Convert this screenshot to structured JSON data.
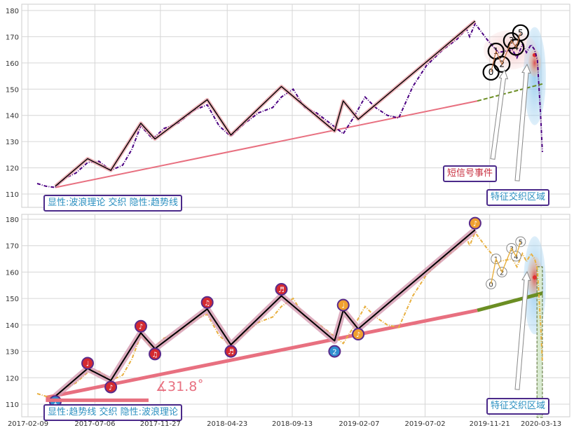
{
  "chart_data": [
    {
      "type": "line",
      "panel": "top",
      "ylim": [
        105,
        182
      ],
      "y_ticks": [
        "110",
        "120",
        "130",
        "140",
        "150",
        "160",
        "170",
        "180"
      ],
      "grid": true,
      "series": [
        {
          "role": "price",
          "color": "#4b0082",
          "style": "dash-dot",
          "x": [
            "2017-03-01",
            "2017-03-20",
            "2017-04-10",
            "2017-05-01",
            "2017-05-25",
            "2017-06-20",
            "2017-07-15",
            "2017-08-10",
            "2017-09-05",
            "2017-09-25",
            "2017-10-15",
            "2017-11-10",
            "2017-12-05",
            "2018-01-05",
            "2018-02-10",
            "2018-03-10",
            "2018-04-05",
            "2018-05-01",
            "2018-06-01",
            "2018-07-01",
            "2018-08-01",
            "2018-08-20",
            "2018-09-15",
            "2018-10-10",
            "2018-11-05",
            "2018-12-05",
            "2019-01-03",
            "2019-01-25",
            "2019-02-20",
            "2019-03-15",
            "2019-04-10",
            "2019-05-05",
            "2019-06-05",
            "2019-07-05",
            "2019-08-10",
            "2019-09-10",
            "2019-10-01",
            "2019-10-08",
            "2019-10-20",
            "2019-11-15",
            "2019-12-10",
            "2020-01-10",
            "2020-01-20",
            "2020-02-01",
            "2020-02-10",
            "2020-02-20",
            "2020-02-28",
            "2020-03-05",
            "2020-03-12",
            "2020-03-16"
          ],
          "y": [
            114,
            113,
            112.5,
            116,
            118,
            122,
            122.5,
            119,
            121,
            127,
            136,
            131,
            135,
            137,
            142,
            144,
            136,
            132,
            137,
            141,
            143,
            147,
            150,
            143,
            141,
            137,
            133,
            139,
            147,
            143,
            140,
            139,
            151,
            159,
            165,
            169,
            173,
            170,
            175,
            169,
            164,
            165,
            162,
            167,
            164,
            167,
            165,
            161,
            140,
            126
          ]
        },
        {
          "role": "wave",
          "color": "#000000",
          "glow": "#e8a0a8",
          "x": [
            "2017-04-10",
            "2017-06-20",
            "2017-08-10",
            "2017-10-15",
            "2017-11-15",
            "2018-03-10",
            "2018-05-01",
            "2018-08-20",
            "2018-12-15",
            "2019-01-03",
            "2019-02-05",
            "2019-10-20"
          ],
          "y": [
            113,
            123.5,
            119,
            137,
            131,
            146,
            132.5,
            151,
            134,
            145.5,
            138.5,
            176
          ]
        },
        {
          "role": "trend",
          "color": "#e87080",
          "x": [
            "2017-04-10",
            "2019-10-25"
          ],
          "y": [
            112.5,
            145.5
          ]
        },
        {
          "role": "trend-extension",
          "color": "#6b8e23",
          "style": "dashed",
          "x": [
            "2019-10-25",
            "2020-03-16"
          ],
          "y": [
            145.5,
            152
          ]
        }
      ],
      "signal_points": [
        {
          "label": "0",
          "x": "2019-11-24",
          "y": 156.5
        },
        {
          "label": "1",
          "x": "2019-12-05",
          "y": 164.5
        },
        {
          "label": "2",
          "x": "2019-12-18",
          "y": 159.5
        },
        {
          "label": "3",
          "x": "2020-01-08",
          "y": 168.5
        },
        {
          "label": "4",
          "x": "2020-01-18",
          "y": 166
        },
        {
          "label": "5",
          "x": "2020-01-28",
          "y": 171.5
        }
      ],
      "annotations": {
        "short_signal": "短信号事件",
        "feature_zone": "特征交织区域",
        "legend": "显性:波浪理论 交织 隐性:趋势线"
      }
    },
    {
      "type": "line",
      "panel": "bottom",
      "ylim": [
        105,
        182
      ],
      "y_ticks": [
        "110",
        "120",
        "130",
        "140",
        "150",
        "160",
        "170",
        "180"
      ],
      "x_ticks": [
        "2017-02-09",
        "2017-07-06",
        "2017-11-27",
        "2018-04-23",
        "2018-09-13",
        "2019-02-07",
        "2019-07-02",
        "2019-11-21",
        "2020-03-13"
      ],
      "grid": true,
      "series": [
        {
          "role": "price",
          "color": "#e8b040",
          "style": "dash-dot",
          "x": [
            "2017-03-01",
            "2017-03-20",
            "2017-04-10",
            "2017-05-01",
            "2017-05-25",
            "2017-06-20",
            "2017-07-15",
            "2017-08-10",
            "2017-09-05",
            "2017-09-25",
            "2017-10-15",
            "2017-11-10",
            "2017-12-05",
            "2018-01-05",
            "2018-02-10",
            "2018-03-10",
            "2018-04-05",
            "2018-05-01",
            "2018-06-01",
            "2018-07-01",
            "2018-08-01",
            "2018-08-20",
            "2018-09-15",
            "2018-10-10",
            "2018-11-05",
            "2018-12-05",
            "2019-01-03",
            "2019-01-25",
            "2019-02-20",
            "2019-03-15",
            "2019-04-10",
            "2019-05-05",
            "2019-06-05",
            "2019-07-05",
            "2019-08-10",
            "2019-09-10",
            "2019-10-01",
            "2019-10-08",
            "2019-10-20",
            "2019-11-15",
            "2019-12-10",
            "2020-01-10",
            "2020-01-20",
            "2020-02-01",
            "2020-02-10",
            "2020-02-20",
            "2020-02-28",
            "2020-03-05",
            "2020-03-12",
            "2020-03-16"
          ],
          "y": [
            114,
            113,
            112.5,
            116,
            118,
            122,
            122.5,
            119,
            121,
            127,
            136,
            131,
            135,
            137,
            142,
            144,
            136,
            132,
            137,
            141,
            143,
            147,
            150,
            143,
            141,
            137,
            133,
            139,
            147,
            143,
            140,
            139,
            151,
            159,
            165,
            169,
            173,
            170,
            175,
            169,
            164,
            165,
            162,
            167,
            164,
            167,
            165,
            161,
            140,
            126
          ]
        },
        {
          "role": "wave",
          "color": "#000000",
          "glow": "#d49ab0",
          "x": [
            "2017-04-10",
            "2017-06-20",
            "2017-08-10",
            "2017-10-15",
            "2017-11-15",
            "2018-03-10",
            "2018-05-01",
            "2018-08-20",
            "2018-12-15",
            "2019-01-03",
            "2019-02-05",
            "2019-10-20"
          ],
          "y": [
            113,
            123.5,
            119,
            137,
            131,
            146,
            132.5,
            151,
            134,
            145.5,
            138.5,
            176
          ]
        },
        {
          "role": "trend",
          "color": "#e87080",
          "x": [
            "2017-03-20",
            "2019-10-25"
          ],
          "y": [
            112.5,
            145.5
          ]
        },
        {
          "role": "trend-extension",
          "color": "#6b8e23",
          "x": [
            "2019-10-25",
            "2020-03-16"
          ],
          "y": [
            145.5,
            152
          ]
        }
      ],
      "wave_markers": [
        {
          "x": "2017-04-10",
          "y": 111,
          "color": "#2f8fd0",
          "glyph": "1"
        },
        {
          "x": "2017-06-20",
          "y": 125.5,
          "color": "#d42a30",
          "glyph": "♩"
        },
        {
          "x": "2017-08-10",
          "y": 116.5,
          "color": "#d42a30",
          "glyph": "♪"
        },
        {
          "x": "2017-10-15",
          "y": 139.5,
          "color": "#d42a30",
          "glyph": "♪"
        },
        {
          "x": "2017-11-15",
          "y": 129,
          "color": "#d42a30",
          "glyph": "♫"
        },
        {
          "x": "2018-03-10",
          "y": 148.5,
          "color": "#d42a30",
          "glyph": "♫"
        },
        {
          "x": "2018-05-01",
          "y": 130,
          "color": "#d42a30",
          "glyph": "♬"
        },
        {
          "x": "2018-08-20",
          "y": 153.5,
          "color": "#d42a30",
          "glyph": "♬"
        },
        {
          "x": "2018-12-15",
          "y": 130,
          "color": "#2f8fd0",
          "glyph": "2"
        },
        {
          "x": "2019-01-03",
          "y": 147.5,
          "color": "#f0a030",
          "glyph": "♩"
        },
        {
          "x": "2019-02-05",
          "y": 136.5,
          "color": "#f0a030",
          "glyph": "♪"
        },
        {
          "x": "2019-10-20",
          "y": 178.5,
          "color": "#f0a030",
          "glyph": "♪"
        }
      ],
      "signal_points": [
        {
          "label": "0",
          "x": "2019-11-24",
          "y": 155.5
        },
        {
          "label": "1",
          "x": "2019-12-05",
          "y": 165
        },
        {
          "label": "2",
          "x": "2019-12-18",
          "y": 160
        },
        {
          "label": "3",
          "x": "2020-01-08",
          "y": 169
        },
        {
          "label": "4",
          "x": "2020-01-18",
          "y": 166
        },
        {
          "label": "5",
          "x": "2020-01-28",
          "y": 171.5
        }
      ],
      "angle_label": "∡31.8˚",
      "annotations": {
        "feature_zone": "特征交织区域",
        "legend": "显性:趋势线 交织 隐性:波浪理论"
      }
    }
  ]
}
